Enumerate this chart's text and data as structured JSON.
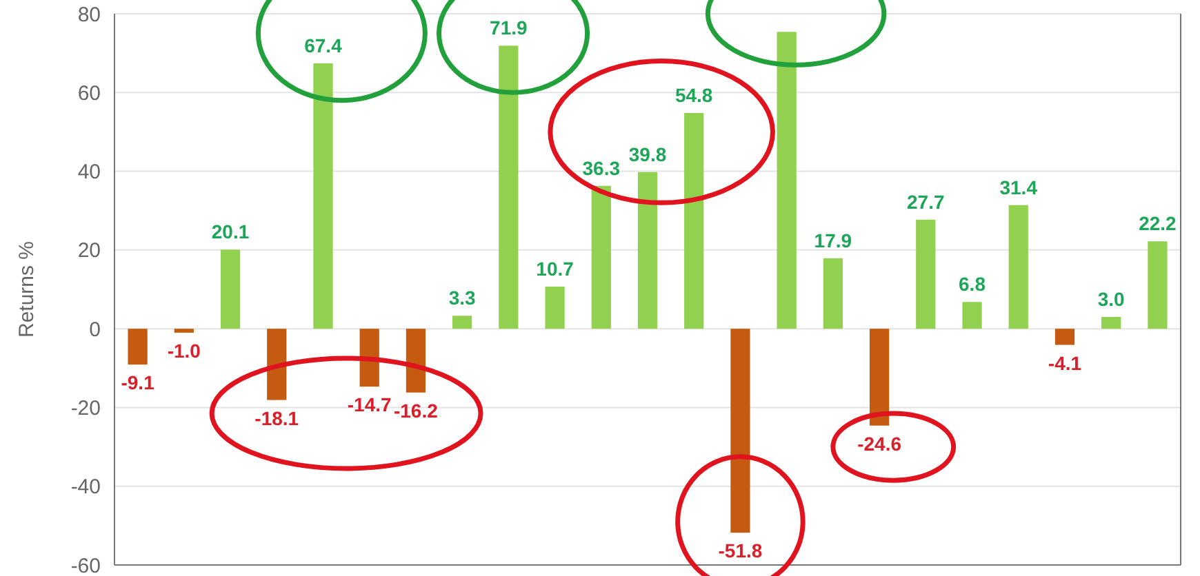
{
  "chart_data": {
    "type": "bar",
    "ylabel": "Returns %",
    "categories": [
      null,
      null,
      null,
      null,
      null,
      null,
      null,
      null,
      null,
      null,
      null,
      null,
      null,
      null,
      null,
      null,
      null,
      null,
      null,
      null,
      null,
      null,
      null
    ],
    "values": [
      -9.1,
      -1.0,
      20.1,
      -18.1,
      67.4,
      -14.7,
      -16.2,
      3.3,
      71.9,
      10.7,
      36.3,
      39.8,
      54.8,
      -51.8,
      75.4,
      17.9,
      -24.6,
      27.7,
      6.8,
      31.4,
      -4.1,
      3.0,
      22.2
    ],
    "colors": [
      "#c55a11",
      "#c55a11",
      "#92d050",
      "#c55a11",
      "#92d050",
      "#c55a11",
      "#c55a11",
      "#92d050",
      "#92d050",
      "#92d050",
      "#92d050",
      "#92d050",
      "#92d050",
      "#c55a11",
      "#92d050",
      "#92d050",
      "#c55a11",
      "#92d050",
      "#92d050",
      "#92d050",
      "#c55a11",
      "#92d050",
      "#92d050"
    ],
    "value_labels": [
      "-9.1",
      "-1.0",
      "20.1",
      "-18.1",
      "67.4",
      "-14.7",
      "-16.2",
      "3.3",
      "71.9",
      "10.7",
      "36.3",
      "39.8",
      "54.8",
      "-51.8",
      null,
      "17.9",
      "-24.6",
      "27.7",
      "6.8",
      "31.4",
      "-4.1",
      "3.0",
      "22.2"
    ],
    "ylim": [
      -60,
      80
    ],
    "yticks": [
      -60,
      -40,
      -20,
      0,
      20,
      40,
      60,
      80
    ],
    "grid": "y"
  }
}
